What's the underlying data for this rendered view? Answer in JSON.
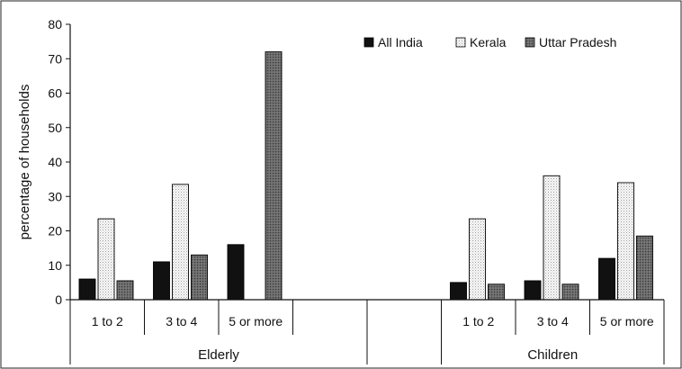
{
  "chart_data": {
    "type": "bar",
    "ylabel": "percentage of households",
    "ylim": [
      0,
      80
    ],
    "yticks": [
      "0",
      "10",
      "20",
      "30",
      "40",
      "50",
      "60",
      "70",
      "80"
    ],
    "legend_position": "top-right",
    "colors": {
      "All India": "#111111",
      "Kerala": "#f2f2f2",
      "Uttar Pradesh": "#555555"
    },
    "groups": [
      {
        "name": "Elderly",
        "categories": [
          "1 to 2",
          "3 to 4",
          "5 or more",
          ""
        ]
      },
      {
        "name": "",
        "categories": [
          ""
        ]
      },
      {
        "name": "Children",
        "categories": [
          "1 to 2",
          "3 to 4",
          "5 or more"
        ]
      }
    ],
    "categories": [
      "1 to 2",
      "3 to 4",
      "5 or more",
      "",
      "",
      "1 to 2",
      "3 to 4",
      "5 or more"
    ],
    "series": [
      {
        "name": "All India",
        "values": [
          6,
          11,
          16,
          null,
          null,
          5,
          5.5,
          12
        ]
      },
      {
        "name": "Kerala",
        "values": [
          23.5,
          33.5,
          null,
          null,
          null,
          23.5,
          36,
          34
        ]
      },
      {
        "name": "Uttar Pradesh",
        "values": [
          5.5,
          13,
          72,
          null,
          null,
          4.5,
          4.5,
          18.5
        ]
      }
    ]
  }
}
